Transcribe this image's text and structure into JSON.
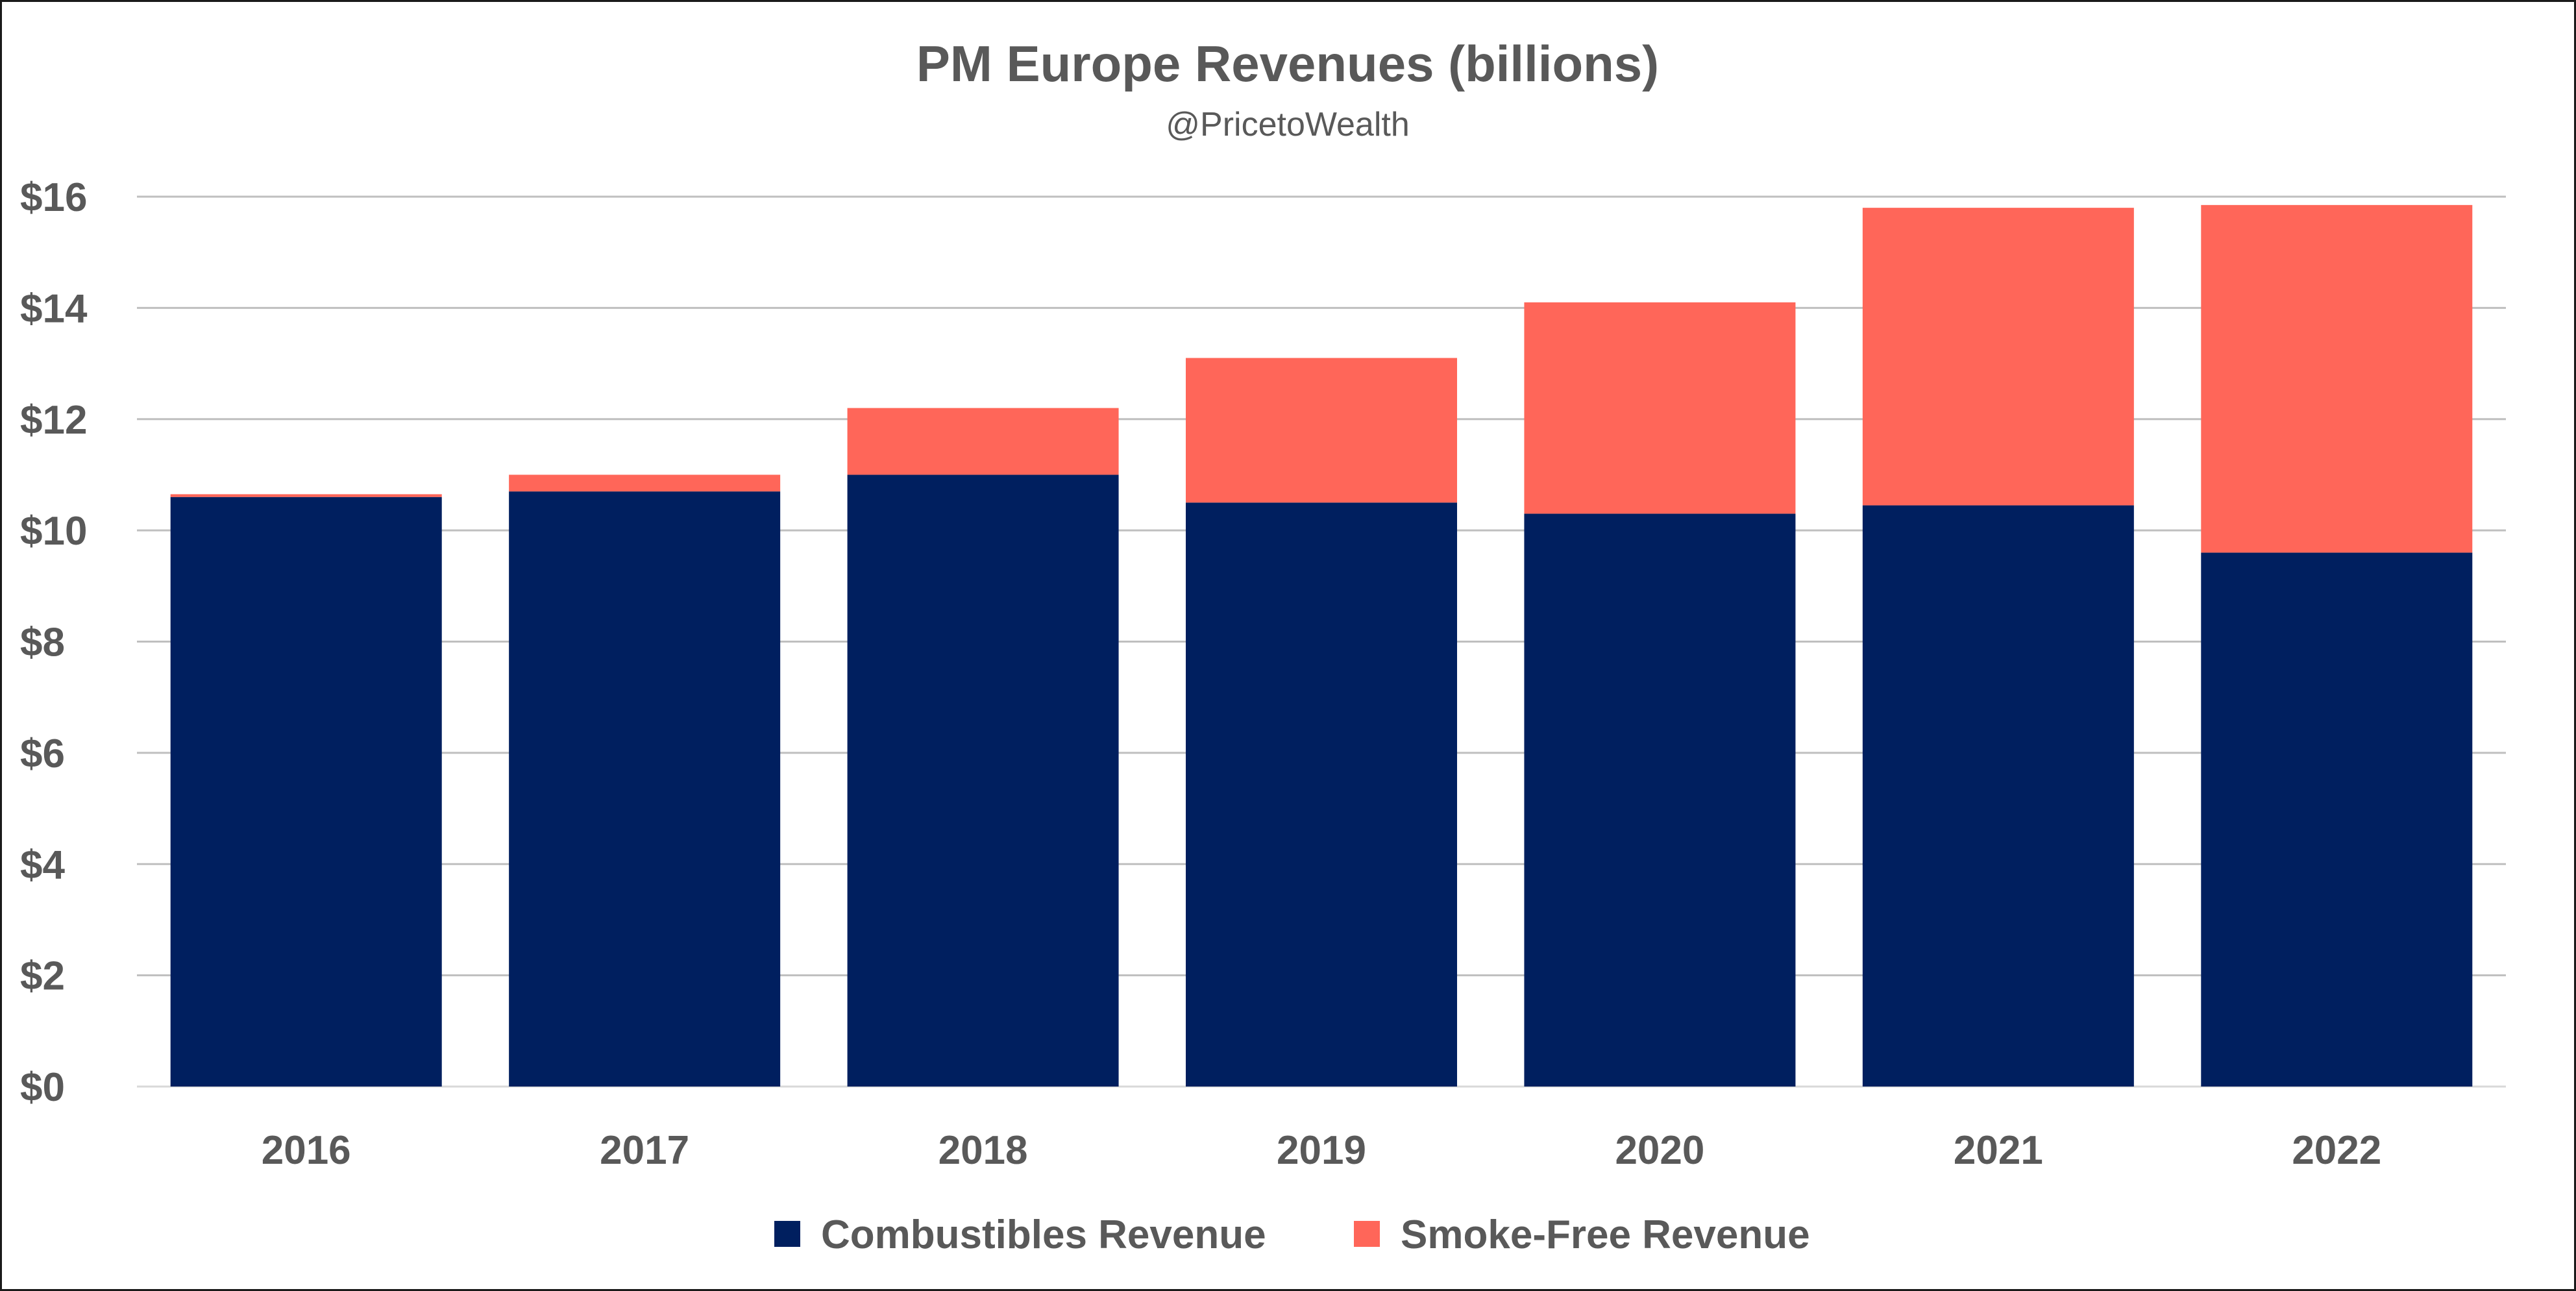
{
  "chart_data": {
    "type": "bar",
    "stacked": true,
    "title": "PM Europe Revenues (billions)",
    "subtitle": "@PricetoWealth",
    "xlabel": "",
    "ylabel": "",
    "categories": [
      "2016",
      "2017",
      "2018",
      "2019",
      "2020",
      "2021",
      "2022"
    ],
    "series": [
      {
        "name": "Combustibles Revenue",
        "color": "#001F5F",
        "values": [
          10.6,
          10.7,
          11.0,
          10.5,
          10.3,
          10.45,
          9.6
        ]
      },
      {
        "name": "Smoke-Free Revenue",
        "color": "#FF6659",
        "values": [
          0.05,
          0.3,
          1.2,
          2.6,
          3.8,
          5.35,
          6.25
        ]
      }
    ],
    "ylim": [
      0,
      16
    ],
    "yticks": [
      0,
      2,
      4,
      6,
      8,
      10,
      12,
      14,
      16
    ],
    "ytick_labels": [
      "$0",
      "$2",
      "$4",
      "$6",
      "$8",
      "$10",
      "$12",
      "$14",
      "$16"
    ],
    "grid": true,
    "legend_position": "bottom"
  }
}
